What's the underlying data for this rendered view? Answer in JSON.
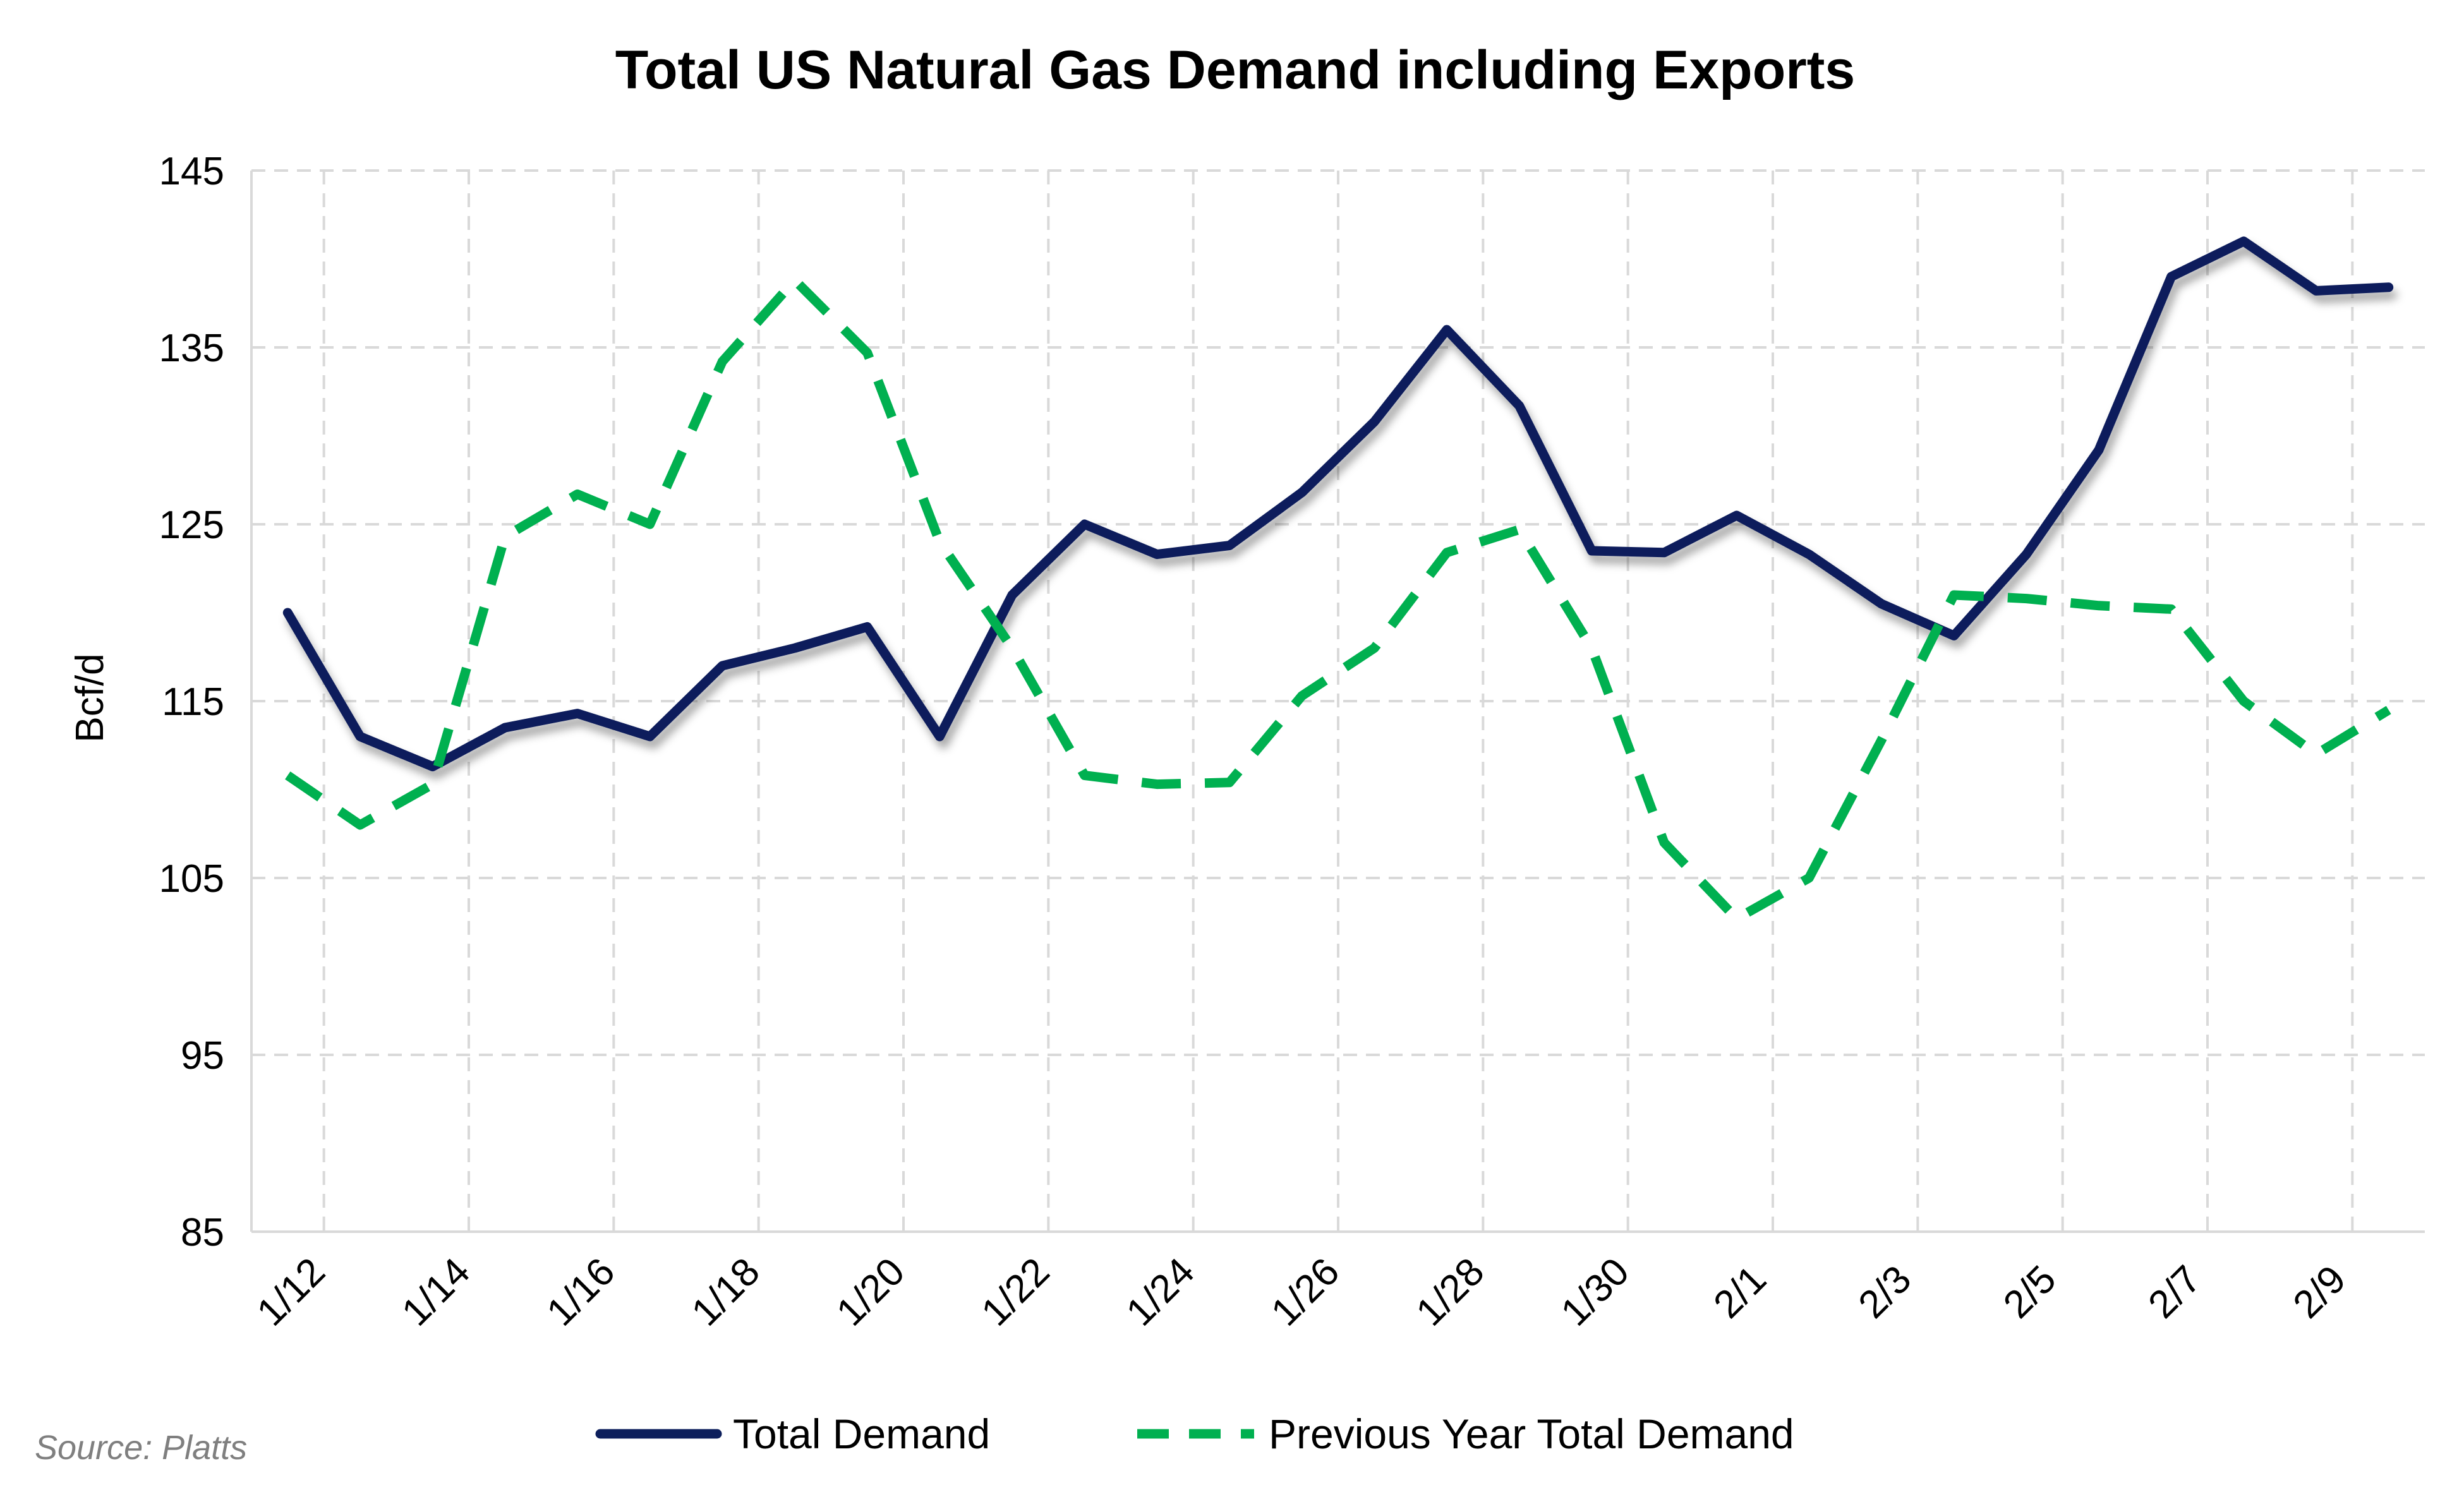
{
  "chart_data": {
    "type": "line",
    "title": "Total US Natural Gas Demand including Exports",
    "xlabel": "",
    "ylabel": "Bcf/d",
    "ylim": [
      85,
      145
    ],
    "yticks": [
      85,
      95,
      105,
      115,
      125,
      135,
      145
    ],
    "xtick_labels": [
      "1/12",
      "1/14",
      "1/16",
      "1/18",
      "1/20",
      "1/22",
      "1/24",
      "1/26",
      "1/28",
      "1/30",
      "2/1",
      "2/3",
      "2/5",
      "2/7",
      "2/9"
    ],
    "grid": true,
    "legend_position": "bottom",
    "x": [
      "1/12",
      "1/13",
      "1/14",
      "1/15",
      "1/16",
      "1/17",
      "1/18",
      "1/19",
      "1/20",
      "1/21",
      "1/22",
      "1/23",
      "1/24",
      "1/25",
      "1/26",
      "1/27",
      "1/28",
      "1/29",
      "1/30",
      "1/31",
      "2/1",
      "2/2",
      "2/3",
      "2/4",
      "2/5",
      "2/6",
      "2/7",
      "2/8",
      "2/9",
      "2/10"
    ],
    "series": [
      {
        "name": "Total Demand",
        "color": "#0d1f5c",
        "style": "solid",
        "values": [
          120.0,
          113.0,
          111.3,
          113.5,
          114.3,
          113.0,
          117.0,
          118.0,
          119.2,
          113.0,
          121.0,
          125.0,
          123.3,
          123.8,
          126.8,
          130.8,
          136.0,
          131.7,
          123.5,
          123.4,
          125.5,
          123.3,
          120.5,
          118.7,
          123.3,
          129.2,
          139.0,
          141.0,
          138.2,
          138.4
        ]
      },
      {
        "name": "Previous Year Total Demand",
        "color": "#00b050",
        "style": "dashed",
        "values": [
          110.8,
          108.0,
          110.3,
          124.3,
          126.7,
          125.0,
          134.2,
          138.8,
          134.7,
          124.0,
          118.0,
          110.8,
          110.3,
          110.4,
          115.3,
          118.0,
          123.4,
          124.7,
          118.0,
          107.0,
          102.7,
          105.0,
          112.8,
          121.0,
          120.8,
          120.4,
          120.2,
          115.0,
          112.0,
          114.5
        ]
      }
    ],
    "source": "Source: Platts"
  }
}
